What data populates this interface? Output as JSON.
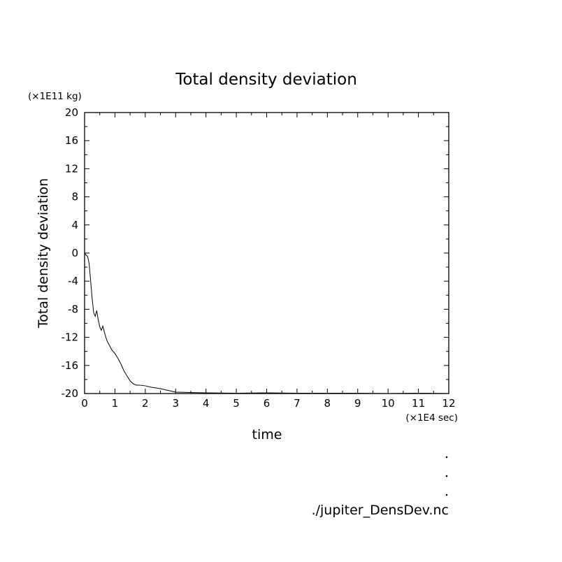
{
  "chart_data": {
    "type": "line",
    "title": "Total density deviation",
    "xlabel": "time",
    "ylabel": "Total density deviation",
    "x_unit": "(×1E4 sec)",
    "y_unit": "(×1E11 kg)",
    "xlim": [
      0,
      12
    ],
    "ylim": [
      -20,
      20
    ],
    "xticks": [
      "0",
      "1",
      "2",
      "3",
      "4",
      "5",
      "6",
      "7",
      "8",
      "9",
      "10",
      "11",
      "12"
    ],
    "yticks": [
      "20",
      "16",
      "12",
      "8",
      "4",
      "0",
      "-4",
      "-8",
      "-12",
      "-16",
      "-20"
    ],
    "grid": false,
    "series": [
      {
        "x": [
          0,
          0.05,
          0.1,
          0.15,
          0.2,
          0.25,
          0.3,
          0.35,
          0.4,
          0.45,
          0.5,
          0.55,
          0.6,
          0.65,
          0.7,
          0.75,
          0.8,
          0.9,
          1.0,
          1.1,
          1.2,
          1.3,
          1.4,
          1.5,
          1.6,
          1.7,
          1.8,
          2.0,
          2.2,
          2.5,
          2.8,
          3.0,
          3.5,
          4.0,
          5.0,
          6.0,
          7.0,
          8.0,
          9.0,
          10.0,
          11.0,
          12.0
        ],
        "y": [
          0,
          -0.3,
          -0.5,
          -1.5,
          -4,
          -6.5,
          -8.5,
          -9,
          -8.2,
          -9.5,
          -10.5,
          -11,
          -10.4,
          -11.2,
          -12,
          -12.6,
          -13,
          -13.8,
          -14.3,
          -15,
          -15.8,
          -16.8,
          -17.5,
          -18.2,
          -18.6,
          -18.8,
          -18.8,
          -18.9,
          -19.1,
          -19.3,
          -19.6,
          -19.8,
          -19.85,
          -19.9,
          -19.95,
          -19.9,
          -19.95,
          -19.95,
          -19.95,
          -20.0,
          -19.95,
          -20.0
        ]
      }
    ]
  },
  "footer": {
    "file_label": "./jupiter_DensDev.nc"
  }
}
